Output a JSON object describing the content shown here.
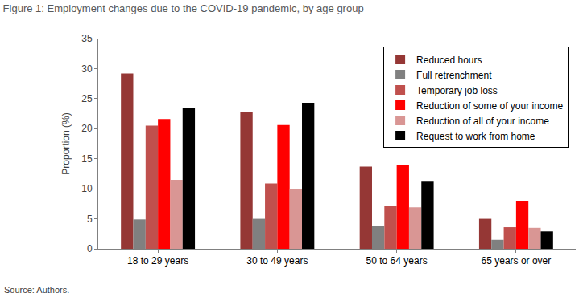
{
  "chart_data": {
    "type": "bar",
    "title": "Figure 1: Employment changes due to the COVID-19 pandemic, by age group",
    "annotations": [
      "Source: Authors."
    ],
    "y_label": "Proportion (%)",
    "categories": [
      "18 to 29 years",
      "30 to 49 years",
      "50 to 64 years",
      "65 years or over"
    ],
    "series": [
      {
        "name": "Reduced hours",
        "color": "#953735",
        "values": [
          29.2,
          22.7,
          13.7,
          5.0
        ]
      },
      {
        "name": "Full retrenchment",
        "color": "#808080",
        "values": [
          4.9,
          5.0,
          3.8,
          1.5
        ]
      },
      {
        "name": "Temporary job loss",
        "color": "#c0504d",
        "values": [
          20.5,
          10.9,
          7.2,
          3.6
        ]
      },
      {
        "name": "Reduction of some of your income",
        "color": "#ff0000",
        "values": [
          21.6,
          20.6,
          13.9,
          7.9
        ]
      },
      {
        "name": "Reduction of all of your income",
        "color": "#d99694",
        "values": [
          11.5,
          10.0,
          6.9,
          3.5
        ]
      },
      {
        "name": "Request to work from home",
        "color": "#000000",
        "values": [
          23.4,
          24.3,
          11.2,
          2.9
        ]
      }
    ],
    "ylim": [
      0,
      35
    ],
    "yticks": [
      0,
      5,
      10,
      15,
      20,
      25,
      30,
      35
    ],
    "grid": false,
    "legend": "top right"
  }
}
